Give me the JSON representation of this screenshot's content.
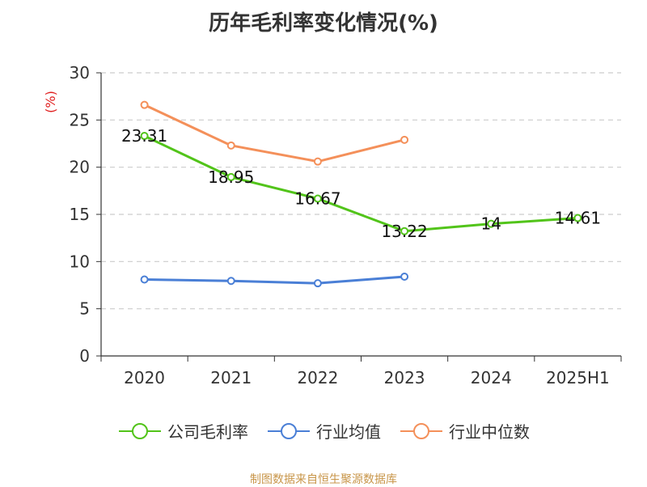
{
  "chart_data": {
    "type": "line",
    "title": "历年毛利率变化情况(%)",
    "ylabel": "(%)",
    "ylim": [
      0,
      30
    ],
    "yticks": [
      0,
      5,
      10,
      15,
      20,
      25,
      30
    ],
    "categories": [
      "2020",
      "2021",
      "2022",
      "2023",
      "2024",
      "2025H1"
    ],
    "grid": "horizontal dashed",
    "legend_position": "bottom",
    "series": [
      {
        "name": "公司毛利率",
        "color": "#52c41a",
        "show_labels": true,
        "values": [
          23.31,
          18.95,
          16.67,
          13.22,
          14,
          14.61
        ]
      },
      {
        "name": "行业均值",
        "color": "#4a7fd6",
        "show_labels": false,
        "values": [
          8.1,
          7.95,
          7.7,
          8.4,
          null,
          null
        ]
      },
      {
        "name": "行业中位数",
        "color": "#f4905a",
        "show_labels": false,
        "values": [
          26.6,
          22.3,
          20.6,
          22.9,
          null,
          null
        ]
      }
    ]
  },
  "source_note": "制图数据来自恒生聚源数据库",
  "colors": {
    "axis": "#333333",
    "grid": "#cccccc",
    "ylabel": "#e02020",
    "source": "#c8964a"
  }
}
